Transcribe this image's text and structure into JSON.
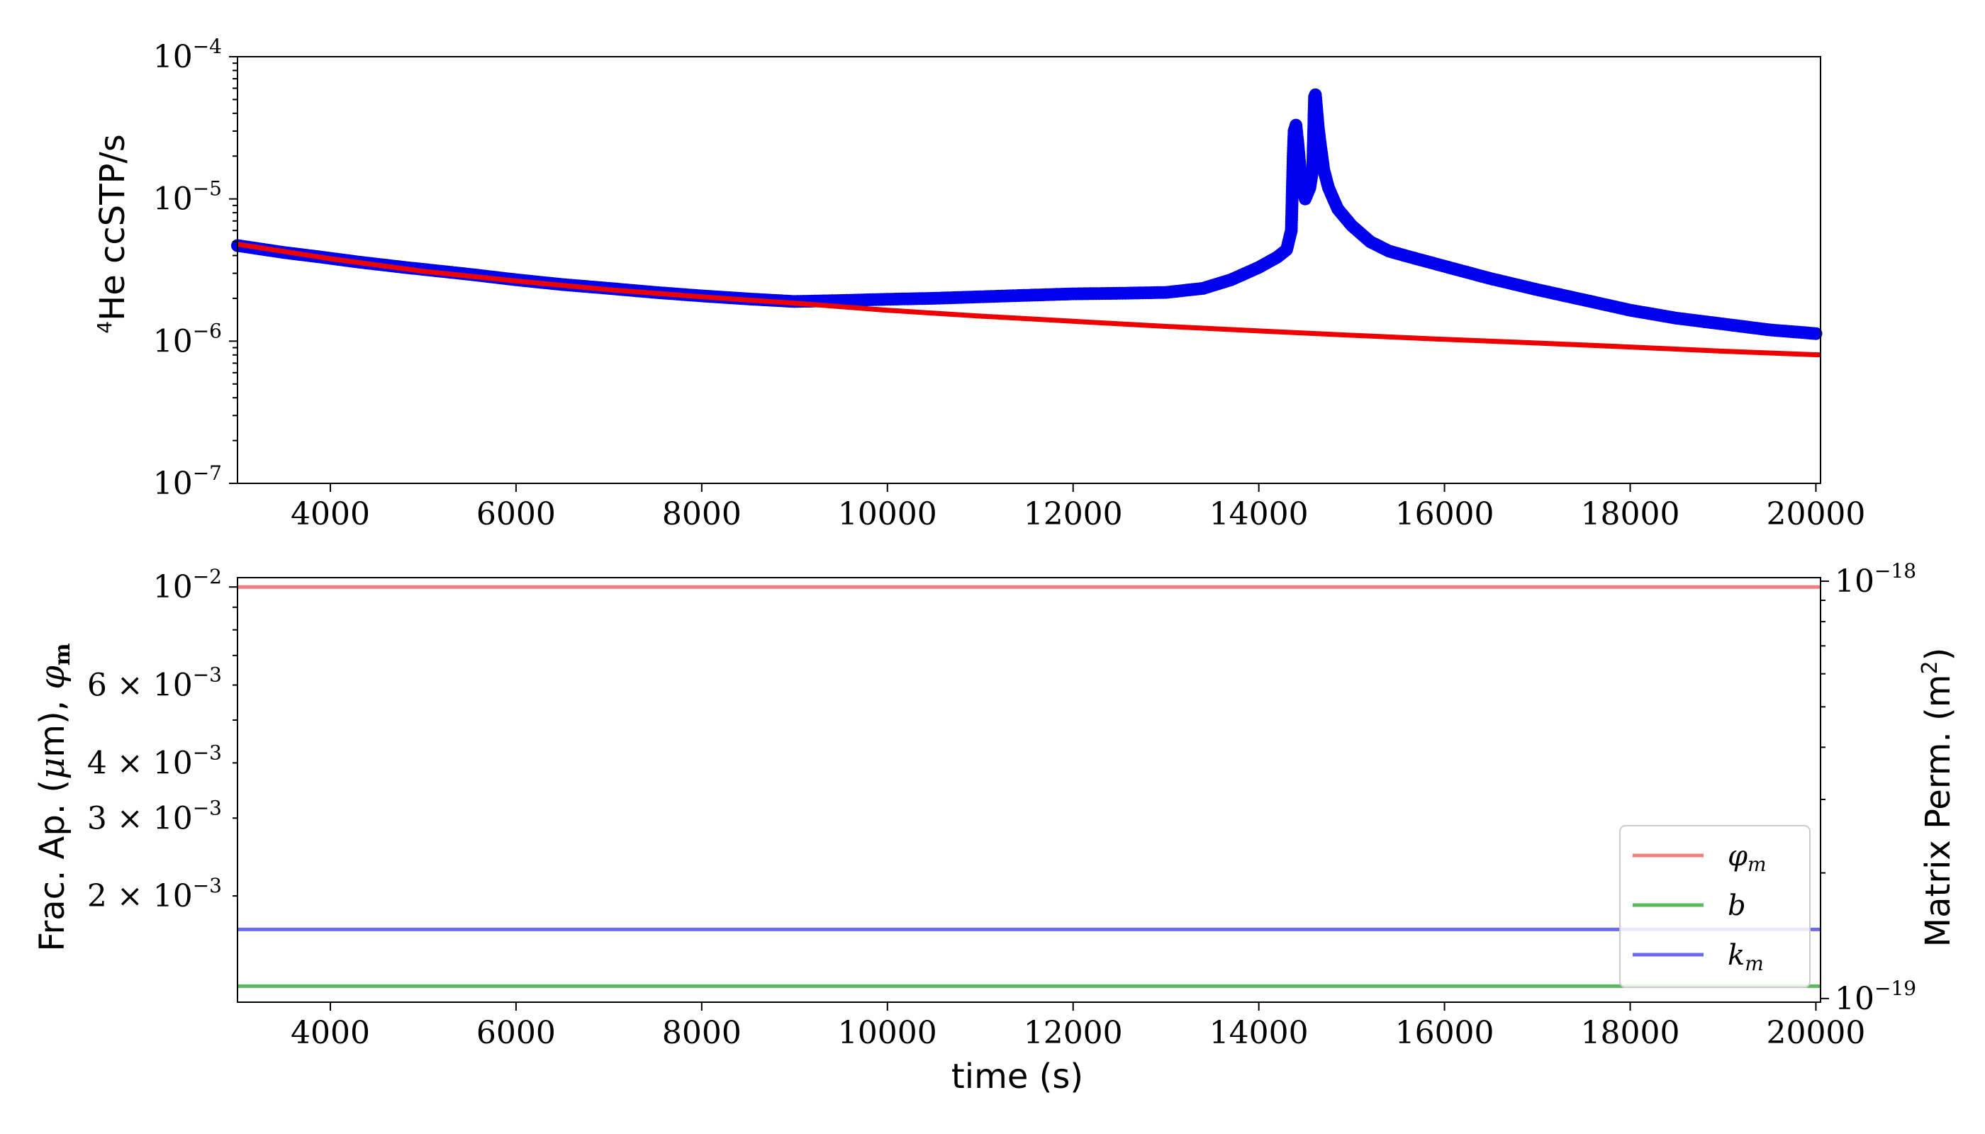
{
  "chart_data": [
    {
      "type": "scatter",
      "title": "",
      "xlabel": "",
      "ylabel": "⁴He ccSTP/s",
      "ylabel_superscript": "4",
      "ylabel_main": "He ccSTP/s",
      "yscale": "log",
      "xlim": [
        3000,
        20050
      ],
      "ylim": [
        1e-07,
        0.0001
      ],
      "xticks": [
        4000,
        6000,
        8000,
        10000,
        12000,
        14000,
        16000,
        18000,
        20000
      ],
      "ytick_labels": [
        {
          "value": 1e-07,
          "base": "10",
          "exp": "−7"
        },
        {
          "value": 1e-06,
          "base": "10",
          "exp": "−6"
        },
        {
          "value": 1e-05,
          "base": "10",
          "exp": "−5"
        },
        {
          "value": 0.0001,
          "base": "10",
          "exp": "−4"
        }
      ],
      "series": [
        {
          "kind": "scatter",
          "color": "#0000ee",
          "points": [
            [
              3000,
              4.7e-06
            ],
            [
              3500,
              4.2e-06
            ],
            [
              3900,
              3.9e-06
            ],
            [
              4300,
              3.6e-06
            ],
            [
              4800,
              3.3e-06
            ],
            [
              5500,
              2.95e-06
            ],
            [
              6000,
              2.7e-06
            ],
            [
              6500,
              2.5e-06
            ],
            [
              7000,
              2.35e-06
            ],
            [
              7500,
              2.2e-06
            ],
            [
              8000,
              2.08e-06
            ],
            [
              8500,
              1.98e-06
            ],
            [
              9000,
              1.9e-06
            ],
            [
              9500,
              1.93e-06
            ],
            [
              10000,
              1.97e-06
            ],
            [
              10500,
              2e-06
            ],
            [
              11000,
              2.05e-06
            ],
            [
              11500,
              2.1e-06
            ],
            [
              12000,
              2.15e-06
            ],
            [
              12500,
              2.17e-06
            ],
            [
              13000,
              2.2e-06
            ],
            [
              13400,
              2.35e-06
            ],
            [
              13700,
              2.7e-06
            ],
            [
              14000,
              3.3e-06
            ],
            [
              14200,
              3.9e-06
            ],
            [
              14300,
              4.4e-06
            ],
            [
              14350,
              6e-06
            ],
            [
              14370,
              2e-05
            ],
            [
              14380,
              3e-05
            ],
            [
              14400,
              3.3e-05
            ],
            [
              14420,
              2.5e-05
            ],
            [
              14440,
              1.8e-05
            ],
            [
              14460,
              1.3e-05
            ],
            [
              14480,
              1.1e-05
            ],
            [
              14500,
              1e-05
            ],
            [
              14550,
              1.2e-05
            ],
            [
              14580,
              1.6e-05
            ],
            [
              14600,
              5.2e-05
            ],
            [
              14610,
              5.4e-05
            ],
            [
              14620,
              4.6e-05
            ],
            [
              14640,
              3.2e-05
            ],
            [
              14660,
              2.5e-05
            ],
            [
              14700,
              1.6e-05
            ],
            [
              14750,
              1.2e-05
            ],
            [
              14850,
              8.5e-06
            ],
            [
              15000,
              6.5e-06
            ],
            [
              15200,
              5e-06
            ],
            [
              15400,
              4.3e-06
            ],
            [
              15600,
              3.95e-06
            ],
            [
              15900,
              3.5e-06
            ],
            [
              16200,
              3.1e-06
            ],
            [
              16500,
              2.75e-06
            ],
            [
              17000,
              2.3e-06
            ],
            [
              17500,
              1.95e-06
            ],
            [
              18000,
              1.65e-06
            ],
            [
              18500,
              1.45e-06
            ],
            [
              19000,
              1.32e-06
            ],
            [
              19500,
              1.2e-06
            ],
            [
              20000,
              1.13e-06
            ]
          ]
        },
        {
          "kind": "line",
          "color": "#ee0000",
          "points": [
            [
              3000,
              4.8e-06
            ],
            [
              4000,
              3.8e-06
            ],
            [
              5000,
              3.1e-06
            ],
            [
              6000,
              2.65e-06
            ],
            [
              7000,
              2.3e-06
            ],
            [
              8000,
              2.05e-06
            ],
            [
              9000,
              1.85e-06
            ],
            [
              10000,
              1.65e-06
            ],
            [
              11000,
              1.5e-06
            ],
            [
              12000,
              1.38e-06
            ],
            [
              13000,
              1.27e-06
            ],
            [
              14000,
              1.18e-06
            ],
            [
              15000,
              1.1e-06
            ],
            [
              16000,
              1.03e-06
            ],
            [
              17000,
              9.7e-07
            ],
            [
              18000,
              9.1e-07
            ],
            [
              19000,
              8.5e-07
            ],
            [
              20050,
              8e-07
            ]
          ]
        }
      ]
    },
    {
      "type": "line",
      "title": "",
      "xlabel": "time (s)",
      "ylabel_left_parts": [
        "Frac. Ap. (",
        "μ",
        "m), ",
        "φ",
        "m"
      ],
      "ylabel_right": "Matrix Perm. (m",
      "ylabel_right_sup": "2",
      "ylabel_right_end": ")",
      "yscale": "log",
      "xlim": [
        3000,
        20050
      ],
      "ylim_left": [
        0.00115,
        0.0105
      ],
      "ylim_right": [
        9.8e-20,
        1.02e-18
      ],
      "xticks": [
        4000,
        6000,
        8000,
        10000,
        12000,
        14000,
        16000,
        18000,
        20000
      ],
      "ytick_labels_left": [
        {
          "value": 0.01,
          "mant": "",
          "base": "10",
          "exp": "−2"
        },
        {
          "value": 0.006,
          "mant": "6 × ",
          "base": "10",
          "exp": "−3"
        },
        {
          "value": 0.004,
          "mant": "4 × ",
          "base": "10",
          "exp": "−3"
        },
        {
          "value": 0.003,
          "mant": "3 × ",
          "base": "10",
          "exp": "−3"
        },
        {
          "value": 0.002,
          "mant": "2 × ",
          "base": "10",
          "exp": "−3"
        }
      ],
      "ytick_labels_right": [
        {
          "value": 1e-18,
          "base": "10",
          "exp": "−18"
        },
        {
          "value": 1e-19,
          "base": "10",
          "exp": "−19"
        }
      ],
      "series": [
        {
          "name": "φ",
          "name_sub": "m",
          "color": "#f08080",
          "axis": "left",
          "value": 0.01
        },
        {
          "name": "b",
          "name_sub": "",
          "color": "#5cb85c",
          "axis": "left",
          "value": 0.00125
        },
        {
          "name": "k",
          "name_sub": "m",
          "color": "#6b6bf0",
          "axis": "left",
          "value": 0.00168
        }
      ],
      "legend_position": "lower right"
    }
  ]
}
